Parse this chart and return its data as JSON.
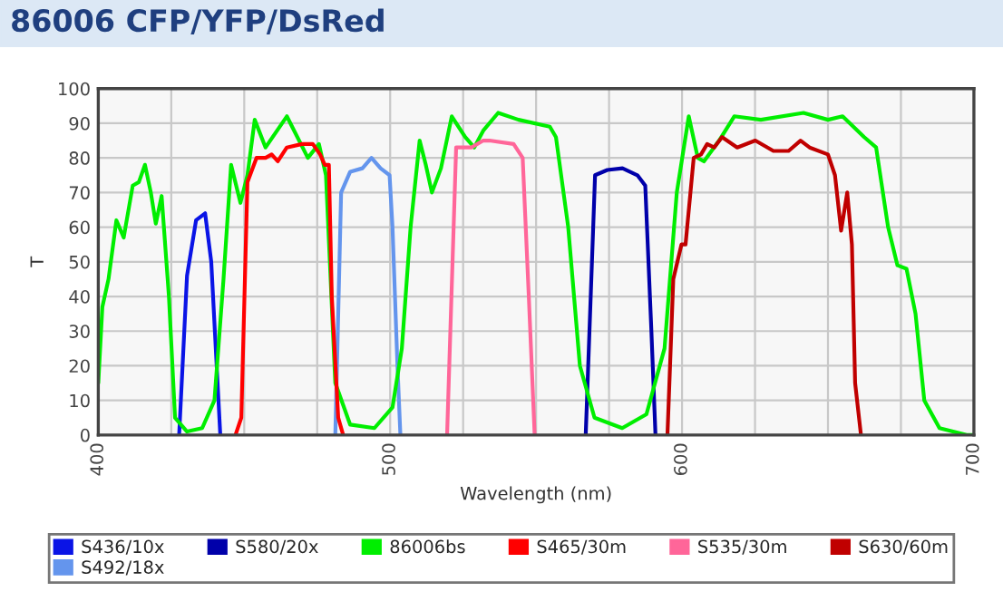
{
  "chart_data": {
    "type": "line",
    "title": "86006 CFP/YFP/DsRed",
    "xlabel": "Wavelength (nm)",
    "ylabel": "T",
    "xlim": [
      400,
      700
    ],
    "ylim": [
      0,
      100
    ],
    "xticks": [
      400,
      {
        "value": 425,
        "label": null
      },
      {
        "value": 450,
        "label": null
      },
      {
        "value": 475,
        "label": null
      },
      500,
      {
        "value": 525,
        "label": null
      },
      {
        "value": 550,
        "label": null
      },
      {
        "value": 575,
        "label": null
      },
      600,
      {
        "value": 625,
        "label": null
      },
      {
        "value": 650,
        "label": null
      },
      {
        "value": 675,
        "label": null
      },
      700
    ],
    "yticks": [
      0,
      10,
      20,
      30,
      40,
      50,
      60,
      70,
      80,
      90,
      100
    ],
    "grid": true,
    "legend": "bottom",
    "marker": "none",
    "line_style": "solid",
    "series": [
      {
        "name": "S436/10x",
        "color": "#0a14e6",
        "x": [
          427.7,
          430.4,
          433.5,
          436.6,
          438.7,
          441.8
        ],
        "values": [
          0,
          46,
          62,
          64,
          50,
          0
        ]
      },
      {
        "name": "S492/18x",
        "color": "#6495ed",
        "x": [
          481.2,
          483.2,
          486.3,
          490.5,
          493.6,
          496.7,
          499.8,
          500.8,
          502.5,
          503.5
        ],
        "values": [
          0,
          70,
          76,
          77,
          80,
          77,
          75,
          60,
          20,
          0
        ]
      },
      {
        "name": "S580/20x",
        "color": "#0000aa",
        "x": [
          567,
          570.2,
          574.4,
          579.6,
          584.7,
          587.4,
          589.5,
          590.9
        ],
        "values": [
          0,
          75,
          76.5,
          77,
          75,
          72,
          30,
          0
        ]
      },
      {
        "name": "86006bs",
        "color": "#00ee00",
        "x": [
          400,
          401.4,
          403.5,
          406.2,
          408.7,
          411.8,
          413.9,
          416,
          418,
          419.7,
          421.7,
          424.2,
          426.3,
          430.4,
          435.6,
          439.8,
          442.9,
          445.5,
          448.7,
          451.1,
          453.6,
          457.3,
          464.6,
          471.8,
          475.6,
          478,
          481.2,
          486.3,
          494.6,
          500.8,
          504,
          507,
          510.1,
          512.2,
          514.3,
          517.4,
          521.1,
          525.7,
          528.8,
          532,
          537,
          544,
          554.7,
          556.8,
          561,
          565,
          570,
          579.5,
          587.8,
          594,
          598.2,
          602.3,
          605.4,
          607.5,
          612.7,
          617.9,
          627,
          641.6,
          650,
          655,
          662.4,
          666.5,
          670.6,
          673.8,
          676.9,
          680,
          683,
          688.2,
          697.5,
          700
        ],
        "values": [
          15,
          37,
          45,
          62,
          57,
          72,
          73,
          78,
          70,
          61,
          69,
          40,
          5,
          1,
          2,
          10,
          45,
          78,
          67,
          75,
          91,
          83,
          92,
          80,
          84,
          75,
          15,
          3,
          2,
          8,
          25,
          60,
          85,
          78,
          70,
          77,
          92,
          86,
          83,
          88,
          93,
          91,
          89,
          86,
          60,
          20,
          5,
          2,
          6,
          25,
          70,
          92,
          80,
          79,
          85,
          92,
          91,
          93,
          91,
          92,
          86,
          83,
          60,
          49,
          48,
          35,
          10,
          2,
          0,
          0
        ]
      },
      {
        "name": "S465/30m",
        "color": "#ff0000",
        "x": [
          447,
          449,
          451.1,
          454.2,
          457.3,
          459.4,
          461.5,
          464.6,
          469.8,
          473.5,
          476,
          477.6,
          479,
          480,
          482.2,
          483.9
        ],
        "values": [
          0,
          5,
          73,
          80,
          80,
          81,
          79,
          83,
          84,
          84,
          81,
          78,
          78,
          40,
          5,
          0
        ]
      },
      {
        "name": "S535/30m",
        "color": "#ff6699",
        "x": [
          519.5,
          522.6,
          527.8,
          531.9,
          534,
          542.3,
          545.4,
          547.5,
          549.5
        ],
        "values": [
          0,
          83,
          83,
          85,
          85,
          84,
          80,
          40,
          0
        ]
      },
      {
        "name": "S630/60m",
        "color": "#c00000",
        "x": [
          595,
          597,
          599.8,
          601.2,
          604,
          606.5,
          608.6,
          611,
          613.7,
          618.9,
          625.1,
          631.3,
          636.5,
          640.6,
          643.7,
          650,
          652.4,
          654.5,
          656.6,
          658.2,
          659.3,
          661.3
        ],
        "values": [
          0,
          45,
          55,
          55,
          80,
          81,
          84,
          83,
          86,
          83,
          85,
          82,
          82,
          85,
          83,
          81,
          75,
          59,
          70,
          55,
          15,
          0
        ]
      }
    ]
  }
}
